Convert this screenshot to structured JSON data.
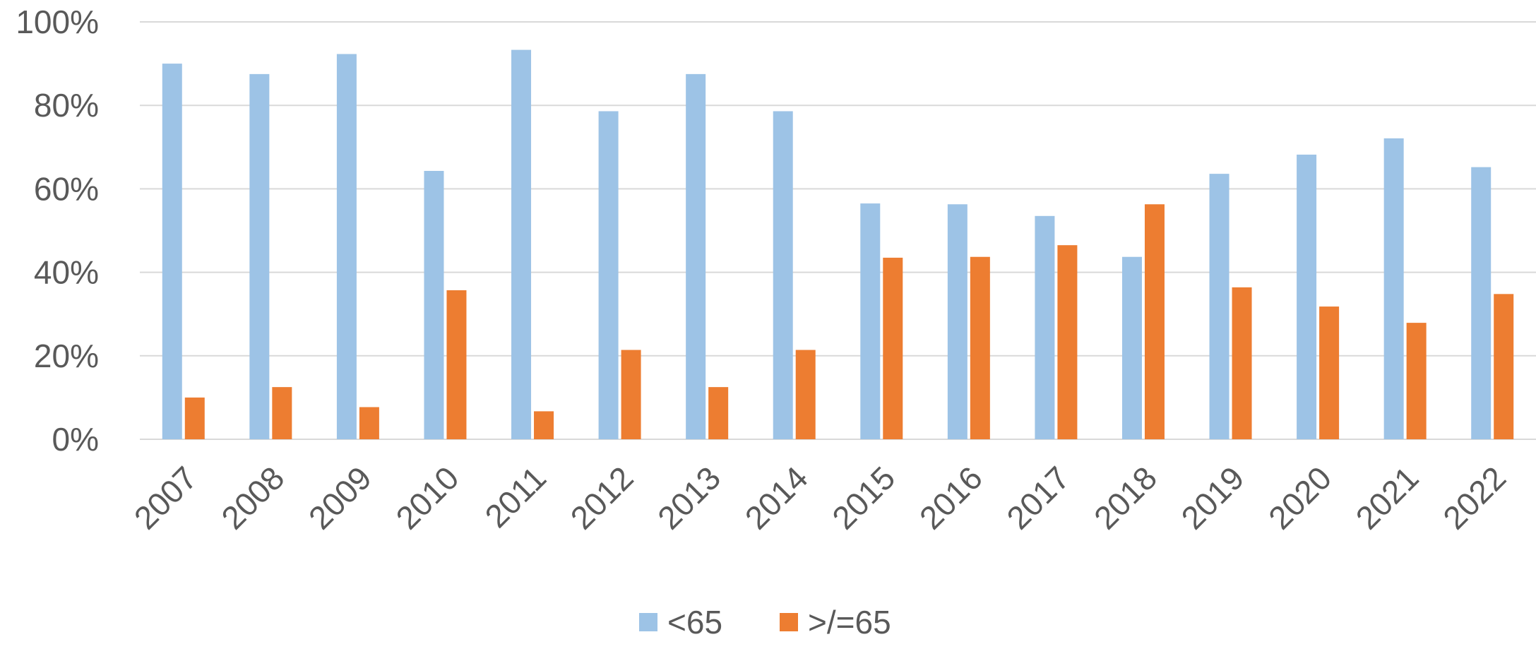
{
  "chart_data": {
    "type": "bar",
    "title": "",
    "xlabel": "",
    "ylabel": "",
    "ylim": [
      0,
      100
    ],
    "y_ticks": [
      "0%",
      "20%",
      "40%",
      "60%",
      "80%",
      "100%"
    ],
    "y_tick_values": [
      0,
      20,
      40,
      60,
      80,
      100
    ],
    "grid": true,
    "legend_position": "bottom",
    "categories": [
      "2007",
      "2008",
      "2009",
      "2010",
      "2011",
      "2012",
      "2013",
      "2014",
      "2015",
      "2016",
      "2017",
      "2018",
      "2019",
      "2020",
      "2021",
      "2022"
    ],
    "series": [
      {
        "name": "<65",
        "color": "#9DC3E6",
        "values": [
          90,
          87.5,
          92.3,
          64.3,
          93.3,
          78.6,
          87.5,
          78.6,
          56.5,
          56.3,
          53.5,
          43.7,
          63.6,
          68.2,
          72.1,
          65.2
        ]
      },
      {
        "name": ">/=65",
        "color": "#ED7D31",
        "values": [
          10,
          12.5,
          7.7,
          35.7,
          6.7,
          21.4,
          12.5,
          21.4,
          43.5,
          43.7,
          46.5,
          56.3,
          36.4,
          31.8,
          27.9,
          34.8
        ]
      }
    ]
  }
}
